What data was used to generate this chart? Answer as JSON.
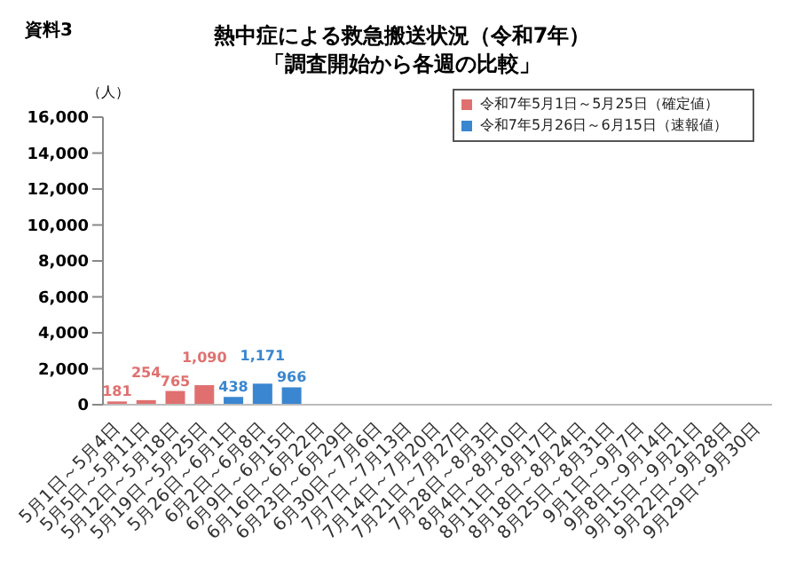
{
  "chart_data": {
    "type": "bar",
    "title": "熱中症による救急搬送状況（令和7年）",
    "subtitle": "「調査開始から各週の比較」",
    "ylabel": "（人）",
    "annotations": [
      "資料3"
    ],
    "categories": [
      "5月1日～5月4日",
      "5月5日～5月11日",
      "5月12日～5月18日",
      "5月19日～5月25日",
      "5月26日～6月1日",
      "6月2日～6月8日",
      "6月9日～6月15日",
      "6月16日～6月22日",
      "6月23日～6月29日",
      "6月30日～7月6日",
      "7月7日～7月13日",
      "7月14日～7月20日",
      "7月21日～7月27日",
      "7月28日～8月3日",
      "8月4日～8月10日",
      "8月11日～8月17日",
      "8月18日～8月24日",
      "8月25日～8月31日",
      "9月1日～9月7日",
      "9月8日～9月14日",
      "9月15日～9月21日",
      "9月22日～9月28日",
      "9月29日～9月30日"
    ],
    "series": [
      {
        "name": "令和7年5月1日～5月25日（確定値）",
        "color": "#e07070",
        "values": [
          181,
          254,
          765,
          1090,
          null,
          null,
          null,
          null,
          null,
          null,
          null,
          null,
          null,
          null,
          null,
          null,
          null,
          null,
          null,
          null,
          null,
          null,
          null
        ],
        "value_labels": [
          "181",
          "254",
          "765",
          "1,090",
          null,
          null,
          null,
          null,
          null,
          null,
          null,
          null,
          null,
          null,
          null,
          null,
          null,
          null,
          null,
          null,
          null,
          null,
          null
        ]
      },
      {
        "name": "令和7年5月26日～6月15日（速報値）",
        "color": "#3a86d0",
        "values": [
          null,
          null,
          null,
          null,
          438,
          1171,
          966,
          null,
          null,
          null,
          null,
          null,
          null,
          null,
          null,
          null,
          null,
          null,
          null,
          null,
          null,
          null,
          null
        ],
        "value_labels": [
          null,
          null,
          null,
          null,
          "438",
          "1,171",
          "966",
          null,
          null,
          null,
          null,
          null,
          null,
          null,
          null,
          null,
          null,
          null,
          null,
          null,
          null,
          null,
          null
        ]
      }
    ],
    "stacked": true,
    "ylim": [
      0,
      16000
    ],
    "yticks": [
      0,
      {
        "value": 2000,
        "label": "2,000"
      },
      {
        "value": 4000,
        "label": "4,000"
      },
      {
        "value": 6000,
        "label": "6,000"
      },
      {
        "value": 8000,
        "label": "8,000"
      },
      {
        "value": 10000,
        "label": "10,000"
      },
      {
        "value": 12000,
        "label": "12,000"
      },
      {
        "value": 14000,
        "label": "14,000"
      },
      {
        "value": 16000,
        "label": "16,000"
      }
    ],
    "grid": false,
    "legend": "top right"
  }
}
